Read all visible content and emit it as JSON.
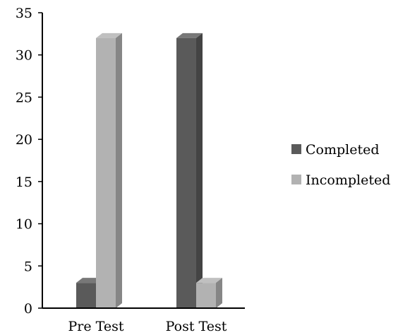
{
  "chart_data": {
    "type": "bar",
    "categories": [
      "Pre Test",
      "Post Test"
    ],
    "series": [
      {
        "name": "Completed",
        "values": [
          3,
          32
        ],
        "color": "#5a5a5a"
      },
      {
        "name": "Incompleted",
        "values": [
          32,
          3
        ],
        "color": "#b2b2b2"
      }
    ],
    "yticks": [
      "0",
      "5",
      "10",
      "15",
      "20",
      "25",
      "30",
      "35"
    ],
    "ylim": [
      0,
      35
    ],
    "title": "",
    "xlabel": "",
    "ylabel": "",
    "grid": false,
    "legend_position": "right",
    "bar_style": "3d"
  }
}
